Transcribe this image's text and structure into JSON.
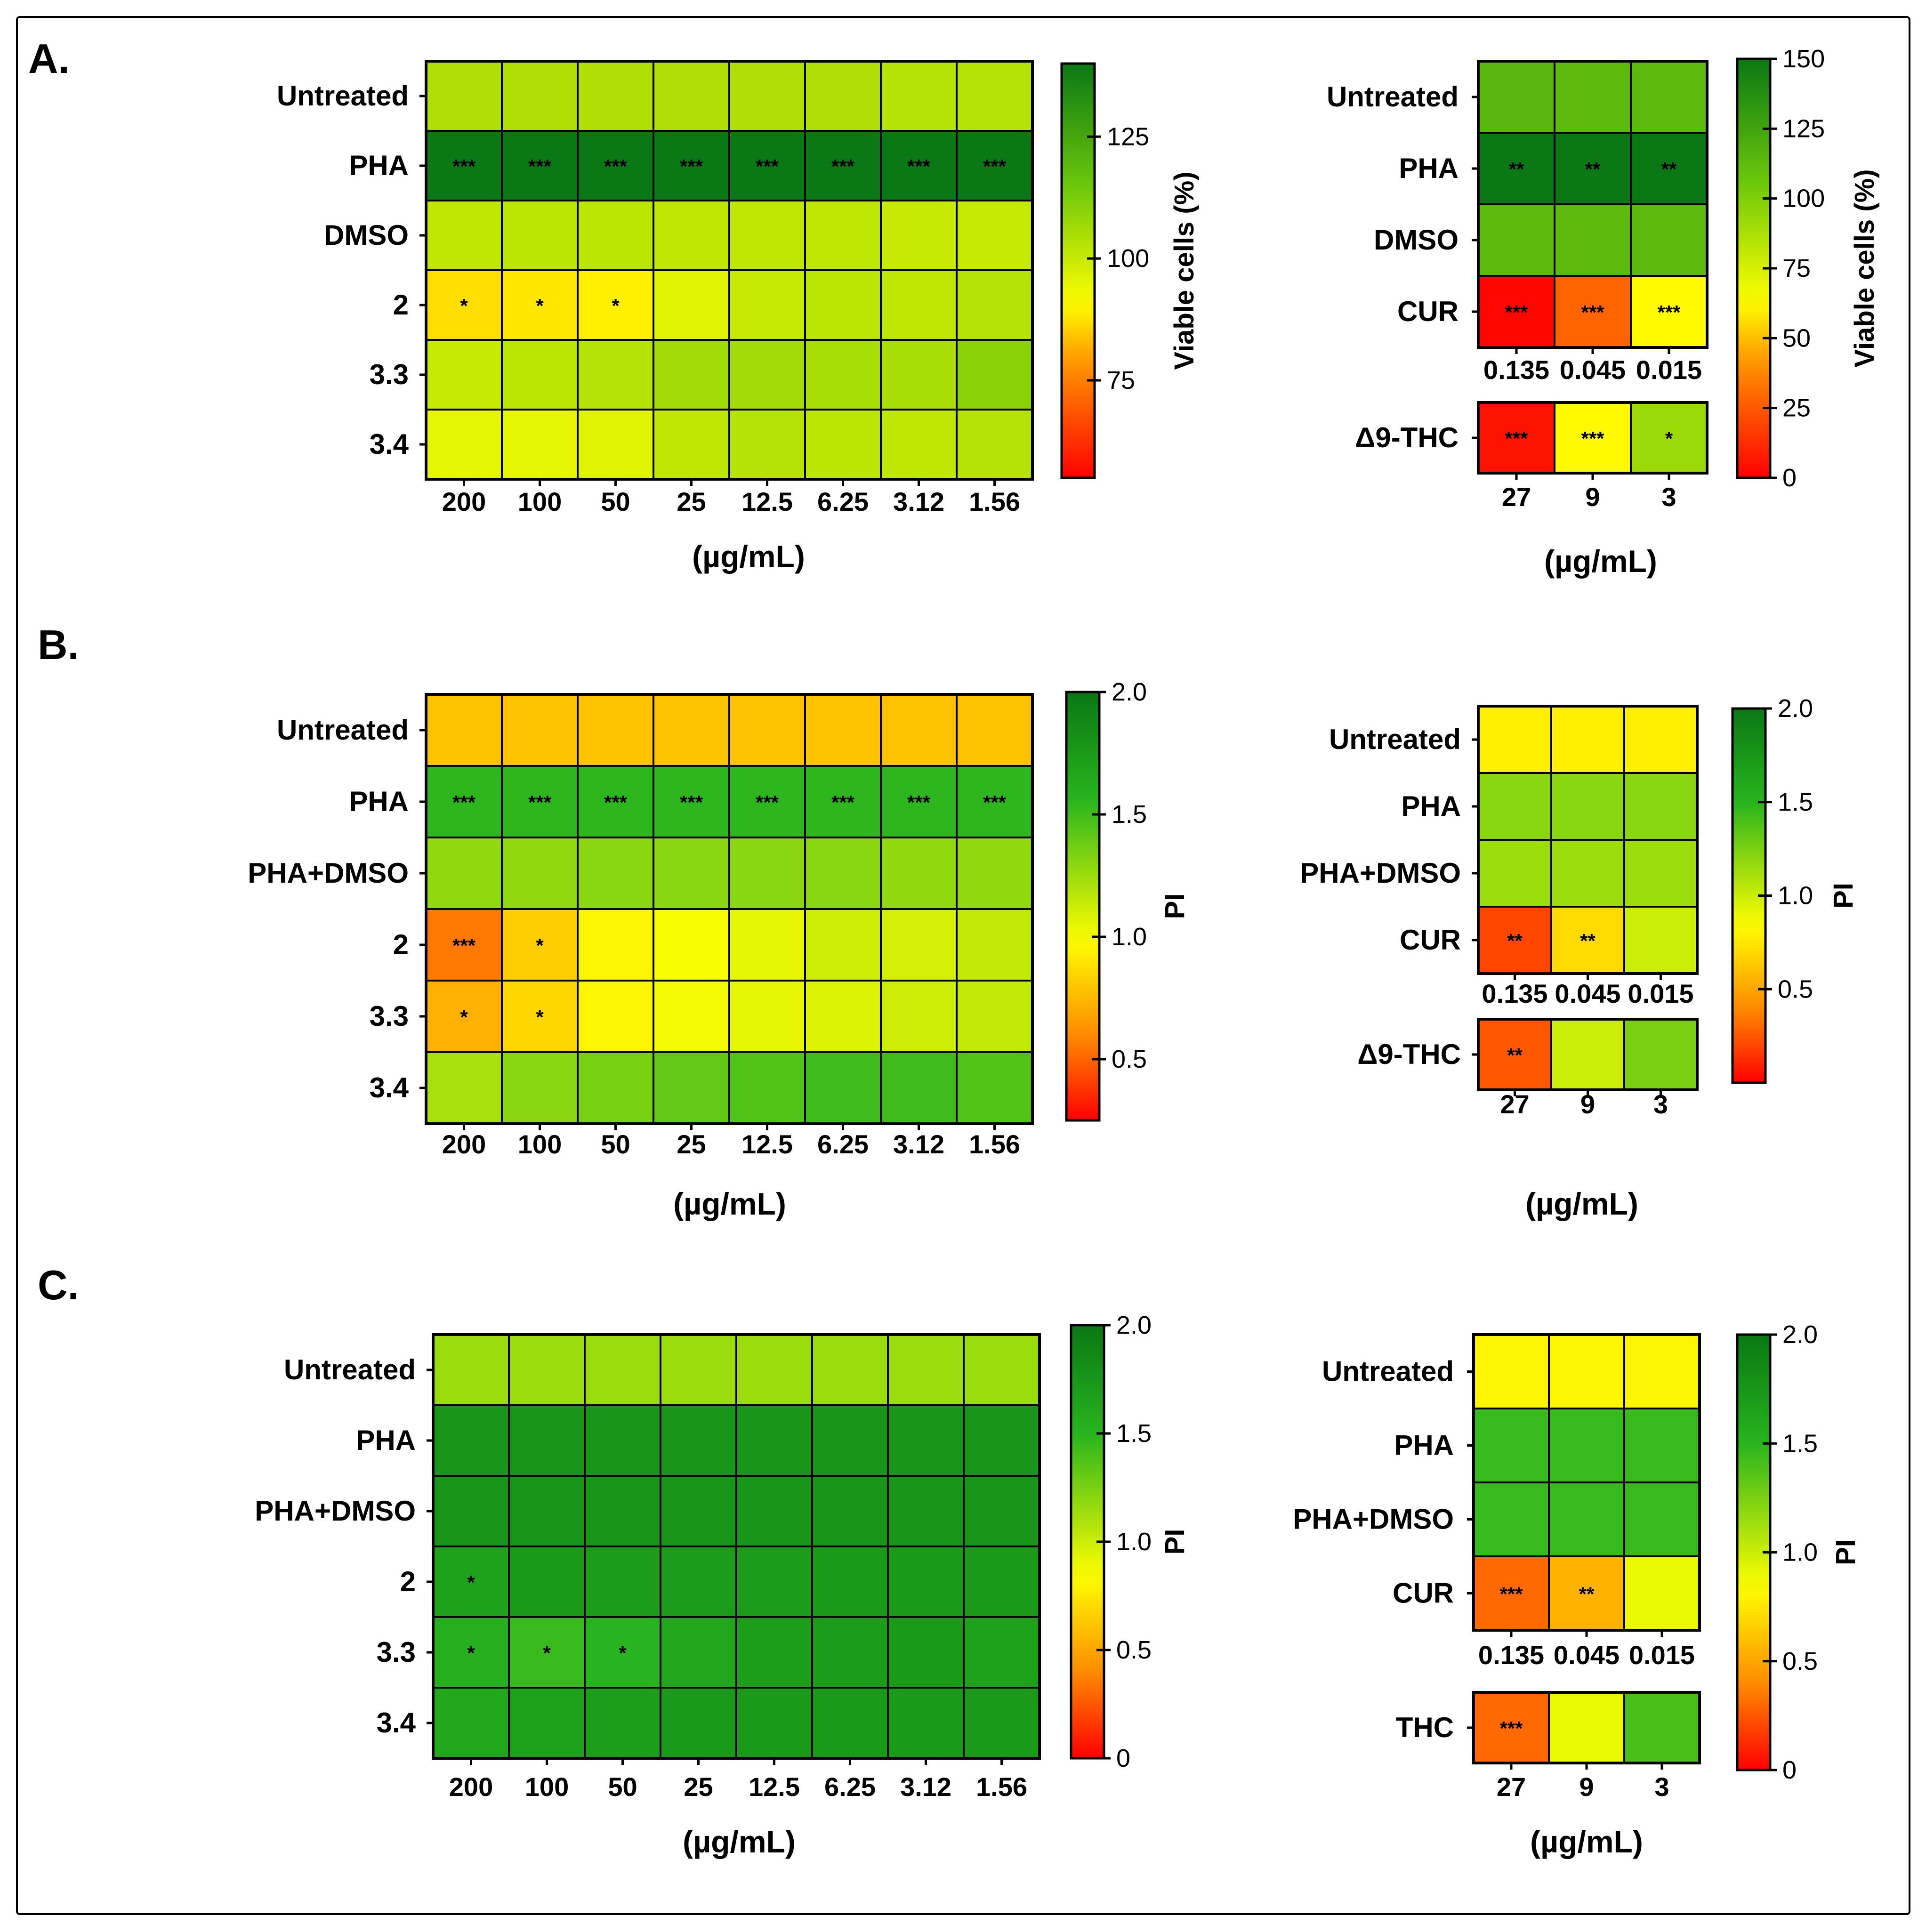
{
  "colors": {
    "frame": "#000000",
    "background": "#ffffff"
  },
  "chart_data": [
    {
      "id": "A-left",
      "panel_label": "A.",
      "type": "heatmap",
      "metric": "viable",
      "rows": [
        "Untreated",
        "PHA",
        "DMSO",
        "2",
        "3.3",
        "3.4"
      ],
      "columns": [
        "200",
        "100",
        "50",
        "25",
        "12.5",
        "6.25",
        "3.12",
        "1.56"
      ],
      "values": [
        [
          104,
          104,
          104,
          104,
          104,
          104,
          103,
          103
        ],
        [
          140,
          140,
          140,
          140,
          140,
          140,
          140,
          140
        ],
        [
          101,
          102,
          102,
          101,
          101,
          101,
          100,
          100
        ],
        [
          87,
          88,
          89,
          96,
          100,
          102,
          101,
          103
        ],
        [
          100,
          102,
          103,
          106,
          106,
          105,
          105,
          110
        ],
        [
          95,
          95,
          96,
          101,
          103,
          102,
          101,
          103
        ]
      ],
      "significance": [
        [
          "",
          "",
          "",
          "",
          "",
          "",
          "",
          ""
        ],
        [
          "***",
          "***",
          "***",
          "***",
          "***",
          "***",
          "***",
          "***"
        ],
        [
          "",
          "",
          "",
          "",
          "",
          "",
          "",
          ""
        ],
        [
          "*",
          "*",
          "*",
          "",
          "",
          "",
          "",
          ""
        ],
        [
          "",
          "",
          "",
          "",
          "",
          "",
          "",
          ""
        ],
        [
          "",
          "",
          "",
          "",
          "",
          "",
          "",
          ""
        ]
      ],
      "xlabel": "(µg/mL)",
      "colorbar": {
        "label": "Viable cells (%)",
        "range": [
          55,
          140
        ],
        "ticks": [
          "75",
          "100",
          "125"
        ]
      }
    },
    {
      "id": "A-right",
      "type": "heatmap",
      "metric": "viable",
      "rows": [
        "Untreated",
        "PHA",
        "DMSO",
        "CUR"
      ],
      "columns": [
        "0.135",
        "0.045",
        "0.015"
      ],
      "values": [
        [
          115,
          113,
          113
        ],
        [
          150,
          150,
          150
        ],
        [
          113,
          113,
          113
        ],
        [
          2,
          28,
          62
        ]
      ],
      "significance": [
        [
          "",
          "",
          ""
        ],
        [
          "**",
          "**",
          "**"
        ],
        [
          "",
          "",
          ""
        ],
        [
          "***",
          "***",
          "***"
        ]
      ],
      "extra_row": {
        "label": "Δ9-THC",
        "columns": [
          "27",
          "9",
          "3"
        ],
        "values": [
          5,
          62,
          92
        ],
        "significance": [
          "***",
          "***",
          "*"
        ]
      },
      "xlabel": "(µg/mL)",
      "colorbar": {
        "label": "Viable cells (%)",
        "range": [
          0,
          150
        ],
        "ticks": [
          "0",
          "25",
          "50",
          "75",
          "100",
          "125",
          "150"
        ]
      }
    },
    {
      "id": "B-left",
      "panel_label": "B.",
      "type": "heatmap",
      "metric": "pi",
      "rows": [
        "Untreated",
        "PHA",
        "PHA+DMSO",
        "2",
        "3.3",
        "3.4"
      ],
      "columns": [
        "200",
        "100",
        "50",
        "25",
        "12.5",
        "6.25",
        "3.12",
        "1.56"
      ],
      "values": [
        [
          0.78,
          0.78,
          0.78,
          0.78,
          0.78,
          0.78,
          0.78,
          0.78
        ],
        [
          1.55,
          1.55,
          1.55,
          1.55,
          1.55,
          1.55,
          1.55,
          1.55
        ],
        [
          1.28,
          1.28,
          1.3,
          1.3,
          1.3,
          1.3,
          1.28,
          1.28
        ],
        [
          0.55,
          0.82,
          0.95,
          1.0,
          1.05,
          1.12,
          1.1,
          1.15
        ],
        [
          0.72,
          0.85,
          0.95,
          1.02,
          1.05,
          1.08,
          1.12,
          1.15
        ],
        [
          1.22,
          1.3,
          1.35,
          1.4,
          1.45,
          1.5,
          1.5,
          1.45
        ]
      ],
      "significance": [
        [
          "",
          "",
          "",
          "",
          "",
          "",
          "",
          ""
        ],
        [
          "***",
          "***",
          "***",
          "***",
          "***",
          "***",
          "***",
          "***"
        ],
        [
          "",
          "",
          "",
          "",
          "",
          "",
          "",
          ""
        ],
        [
          "***",
          "*",
          "",
          "",
          "",
          "",
          "",
          ""
        ],
        [
          "*",
          "*",
          "",
          "",
          "",
          "",
          "",
          ""
        ],
        [
          "",
          "",
          "",
          "",
          "",
          "",
          "",
          ""
        ]
      ],
      "xlabel": "(µg/mL)",
      "colorbar": {
        "label": "PI",
        "range": [
          0.25,
          2.0
        ],
        "ticks": [
          "0.5",
          "1.0",
          "1.5",
          "2.0"
        ]
      }
    },
    {
      "id": "B-right",
      "type": "heatmap",
      "metric": "pi",
      "rows": [
        "Untreated",
        "PHA",
        "PHA+DMSO",
        "CUR"
      ],
      "columns": [
        "0.135",
        "0.045",
        "0.015"
      ],
      "values": [
        [
          0.78,
          0.78,
          0.78
        ],
        [
          1.2,
          1.2,
          1.2
        ],
        [
          1.15,
          1.15,
          1.15
        ],
        [
          0.2,
          0.7,
          1.0
        ]
      ],
      "significance": [
        [
          "",
          "",
          ""
        ],
        [
          "",
          "",
          ""
        ],
        [
          "",
          "",
          ""
        ],
        [
          "**",
          "**",
          ""
        ]
      ],
      "extra_row": {
        "label": "Δ9-THC",
        "columns": [
          "27",
          "9",
          "3"
        ],
        "values": [
          0.25,
          1.0,
          1.25
        ],
        "significance": [
          "**",
          "",
          ""
        ]
      },
      "xlabel": "(µg/mL)",
      "colorbar": {
        "label": "PI",
        "range": [
          0.0,
          2.0
        ],
        "ticks": [
          "0.5",
          "1.0",
          "1.5",
          "2.0"
        ]
      }
    },
    {
      "id": "C-left",
      "panel_label": "C.",
      "type": "heatmap",
      "metric": "pi",
      "rows": [
        "Untreated",
        "PHA",
        "PHA+DMSO",
        "2",
        "3.3",
        "3.4"
      ],
      "columns": [
        "200",
        "100",
        "50",
        "25",
        "12.5",
        "6.25",
        "3.12",
        "1.56"
      ],
      "values": [
        [
          1.15,
          1.15,
          1.15,
          1.15,
          1.15,
          1.15,
          1.15,
          1.15
        ],
        [
          1.75,
          1.75,
          1.75,
          1.75,
          1.75,
          1.75,
          1.75,
          1.75
        ],
        [
          1.75,
          1.75,
          1.75,
          1.75,
          1.75,
          1.75,
          1.75,
          1.75
        ],
        [
          1.65,
          1.72,
          1.7,
          1.7,
          1.7,
          1.72,
          1.72,
          1.72
        ],
        [
          1.55,
          1.45,
          1.5,
          1.62,
          1.68,
          1.7,
          1.72,
          1.65
        ],
        [
          1.6,
          1.65,
          1.68,
          1.72,
          1.72,
          1.72,
          1.72,
          1.72
        ]
      ],
      "significance": [
        [
          "",
          "",
          "",
          "",
          "",
          "",
          "",
          ""
        ],
        [
          "",
          "",
          "",
          "",
          "",
          "",
          "",
          ""
        ],
        [
          "",
          "",
          "",
          "",
          "",
          "",
          "",
          ""
        ],
        [
          "*",
          "",
          "",
          "",
          "",
          "",
          "",
          ""
        ],
        [
          "*",
          "*",
          "*",
          "",
          "",
          "",
          "",
          ""
        ],
        [
          "",
          "",
          "",
          "",
          "",
          "",
          "",
          ""
        ]
      ],
      "xlabel": "(µg/mL)",
      "colorbar": {
        "label": "PI",
        "range": [
          0,
          2.0
        ],
        "ticks": [
          "0",
          "0.5",
          "1.0",
          "1.5",
          "2.0"
        ]
      }
    },
    {
      "id": "C-right",
      "type": "heatmap",
      "metric": "pi",
      "rows": [
        "Untreated",
        "PHA",
        "PHA+DMSO",
        "CUR"
      ],
      "columns": [
        "0.135",
        "0.045",
        "0.015"
      ],
      "values": [
        [
          0.8,
          0.8,
          0.8
        ],
        [
          1.45,
          1.45,
          1.45
        ],
        [
          1.45,
          1.45,
          1.45
        ],
        [
          0.3,
          0.55,
          0.9
        ]
      ],
      "significance": [
        [
          "",
          "",
          ""
        ],
        [
          "",
          "",
          ""
        ],
        [
          "",
          "",
          ""
        ],
        [
          "***",
          "**",
          ""
        ]
      ],
      "extra_row": {
        "label": "THC",
        "columns": [
          "27",
          "9",
          "3"
        ],
        "values": [
          0.3,
          0.9,
          1.4
        ],
        "significance": [
          "***",
          "",
          ""
        ]
      },
      "xlabel": "(µg/mL)",
      "colorbar": {
        "label": "PI",
        "range": [
          0,
          2.0
        ],
        "ticks": [
          "0",
          "0.5",
          "1.0",
          "1.5",
          "2.0"
        ]
      }
    }
  ]
}
